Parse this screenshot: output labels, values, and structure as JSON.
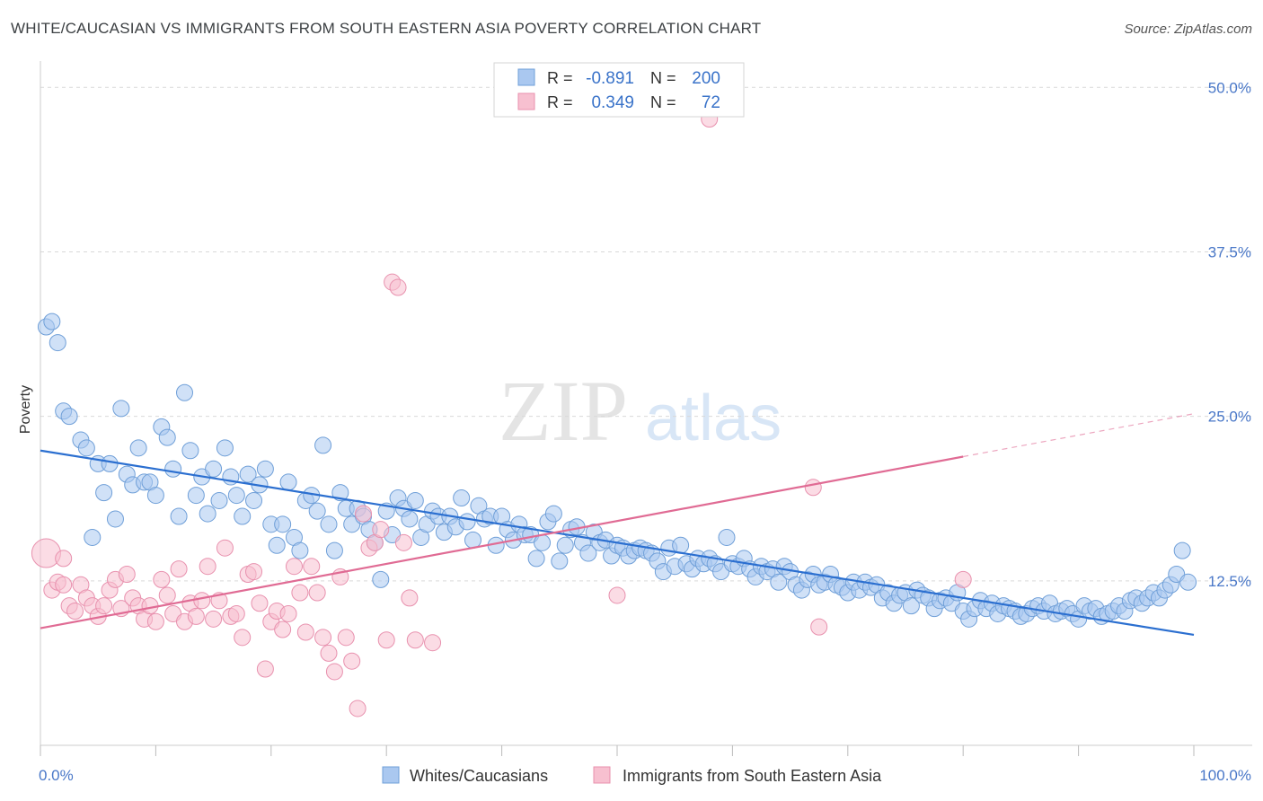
{
  "title": "WHITE/CAUCASIAN VS IMMIGRANTS FROM SOUTH EASTERN ASIA POVERTY CORRELATION CHART",
  "source": "Source: ZipAtlas.com",
  "watermark": {
    "zip": "ZIP",
    "atlas": "atlas"
  },
  "colors": {
    "blue_fill": "#aac8f0",
    "blue_stroke": "#6f9fd8",
    "blue_line": "#2b6fd0",
    "pink_fill": "#f7c0d0",
    "pink_stroke": "#e891ae",
    "pink_line": "#e06b94",
    "axis_text": "#4a78c8",
    "grid": "#d9d9d9"
  },
  "legend": {
    "rows": [
      {
        "r_label": "R =",
        "r_value": "-0.891",
        "n_label": "N =",
        "n_value": "200"
      },
      {
        "r_label": "R =",
        "r_value": "0.349",
        "n_label": "N =",
        "n_value": "72"
      }
    ]
  },
  "bottom_legend": {
    "series1": "Whites/Caucasians",
    "series2": "Immigrants from South Eastern Asia"
  },
  "chart_data": {
    "type": "scatter",
    "xlabel": "",
    "ylabel": "Poverty",
    "xlim": [
      0,
      100
    ],
    "ylim": [
      0,
      52
    ],
    "x_tick_labels": [
      "0.0%",
      "100.0%"
    ],
    "y_ticks": [
      12.5,
      25.0,
      37.5,
      50.0
    ],
    "y_tick_labels": [
      "12.5%",
      "25.0%",
      "37.5%",
      "50.0%"
    ],
    "series": [
      {
        "name": "Whites/Caucasians",
        "r": -0.891,
        "n": 200,
        "trend": {
          "x0": 0,
          "y0": 22.4,
          "x1": 100,
          "y1": 8.4,
          "solid_to": 100
        },
        "points": [
          [
            0.5,
            31.8
          ],
          [
            1,
            32.2
          ],
          [
            1.5,
            30.6
          ],
          [
            2,
            25.4
          ],
          [
            2.5,
            25
          ],
          [
            3.5,
            23.2
          ],
          [
            4,
            22.6
          ],
          [
            5,
            21.4
          ],
          [
            5.5,
            19.2
          ],
          [
            6,
            21.4
          ],
          [
            6.5,
            17.2
          ],
          [
            4.5,
            15.8
          ],
          [
            7,
            25.6
          ],
          [
            7.5,
            20.6
          ],
          [
            8,
            19.8
          ],
          [
            8.5,
            22.6
          ],
          [
            9,
            20
          ],
          [
            9.5,
            20
          ],
          [
            10,
            19
          ],
          [
            10.5,
            24.2
          ],
          [
            11,
            23.4
          ],
          [
            11.5,
            21
          ],
          [
            12,
            17.4
          ],
          [
            12.5,
            26.8
          ],
          [
            13,
            22.4
          ],
          [
            13.5,
            19
          ],
          [
            14,
            20.4
          ],
          [
            14.5,
            17.6
          ],
          [
            15,
            21
          ],
          [
            15.5,
            18.6
          ],
          [
            16,
            22.6
          ],
          [
            16.5,
            20.4
          ],
          [
            17,
            19
          ],
          [
            17.5,
            17.4
          ],
          [
            18,
            20.6
          ],
          [
            18.5,
            18.6
          ],
          [
            19,
            19.8
          ],
          [
            19.5,
            21
          ],
          [
            20,
            16.8
          ],
          [
            20.5,
            15.2
          ],
          [
            21,
            16.8
          ],
          [
            21.5,
            20
          ],
          [
            22,
            15.8
          ],
          [
            22.5,
            14.8
          ],
          [
            23,
            18.6
          ],
          [
            23.5,
            19
          ],
          [
            24,
            17.8
          ],
          [
            24.5,
            22.8
          ],
          [
            25,
            16.8
          ],
          [
            25.5,
            14.8
          ],
          [
            26,
            19.2
          ],
          [
            26.5,
            18
          ],
          [
            27,
            16.8
          ],
          [
            27.5,
            18
          ],
          [
            28,
            17.4
          ],
          [
            28.5,
            16.4
          ],
          [
            29,
            15.4
          ],
          [
            29.5,
            12.6
          ],
          [
            30,
            17.8
          ],
          [
            30.5,
            16
          ],
          [
            31,
            18.8
          ],
          [
            31.5,
            18
          ],
          [
            32,
            17.2
          ],
          [
            32.5,
            18.6
          ],
          [
            33,
            15.8
          ],
          [
            33.5,
            16.8
          ],
          [
            34,
            17.8
          ],
          [
            34.5,
            17.4
          ],
          [
            35,
            16.2
          ],
          [
            35.5,
            17.4
          ],
          [
            36,
            16.6
          ],
          [
            36.5,
            18.8
          ],
          [
            37,
            17
          ],
          [
            37.5,
            15.6
          ],
          [
            38,
            18.2
          ],
          [
            38.5,
            17.2
          ],
          [
            39,
            17.4
          ],
          [
            39.5,
            15.2
          ],
          [
            40,
            17.4
          ],
          [
            40.5,
            16.4
          ],
          [
            41,
            15.6
          ],
          [
            41.5,
            16.8
          ],
          [
            42,
            16
          ],
          [
            42.5,
            16
          ],
          [
            43,
            14.2
          ],
          [
            43.5,
            15.4
          ],
          [
            44,
            17
          ],
          [
            44.5,
            17.6
          ],
          [
            45,
            14
          ],
          [
            45.5,
            15.2
          ],
          [
            46,
            16.4
          ],
          [
            46.5,
            16.6
          ],
          [
            47,
            15.4
          ],
          [
            47.5,
            14.6
          ],
          [
            48,
            16.2
          ],
          [
            48.5,
            15.4
          ],
          [
            49,
            15.6
          ],
          [
            49.5,
            14.4
          ],
          [
            50,
            15.2
          ],
          [
            50.5,
            15
          ],
          [
            51,
            14.4
          ],
          [
            51.5,
            14.8
          ],
          [
            52,
            15
          ],
          [
            52.5,
            14.8
          ],
          [
            53,
            14.6
          ],
          [
            53.5,
            14
          ],
          [
            54,
            13.2
          ],
          [
            54.5,
            15
          ],
          [
            55,
            13.6
          ],
          [
            55.5,
            15.2
          ],
          [
            56,
            13.8
          ],
          [
            56.5,
            13.4
          ],
          [
            57,
            14.2
          ],
          [
            57.5,
            13.8
          ],
          [
            58,
            14.2
          ],
          [
            58.5,
            13.8
          ],
          [
            59,
            13.2
          ],
          [
            59.5,
            15.8
          ],
          [
            60,
            13.8
          ],
          [
            60.5,
            13.6
          ],
          [
            61,
            14.2
          ],
          [
            61.5,
            13.4
          ],
          [
            62,
            12.8
          ],
          [
            62.5,
            13.6
          ],
          [
            63,
            13.2
          ],
          [
            63.5,
            13.4
          ],
          [
            64,
            12.4
          ],
          [
            64.5,
            13.6
          ],
          [
            65,
            13.2
          ],
          [
            65.5,
            12.2
          ],
          [
            66,
            11.8
          ],
          [
            66.5,
            12.6
          ],
          [
            67,
            13
          ],
          [
            67.5,
            12.2
          ],
          [
            68,
            12.4
          ],
          [
            68.5,
            13
          ],
          [
            69,
            12.2
          ],
          [
            69.5,
            12
          ],
          [
            70,
            11.6
          ],
          [
            70.5,
            12.4
          ],
          [
            71,
            11.8
          ],
          [
            71.5,
            12.4
          ],
          [
            72,
            12
          ],
          [
            72.5,
            12.2
          ],
          [
            73,
            11.2
          ],
          [
            73.5,
            11.6
          ],
          [
            74,
            10.8
          ],
          [
            74.5,
            11.4
          ],
          [
            75,
            11.6
          ],
          [
            75.5,
            10.6
          ],
          [
            76,
            11.8
          ],
          [
            76.5,
            11.4
          ],
          [
            77,
            11.2
          ],
          [
            77.5,
            10.4
          ],
          [
            78,
            11
          ],
          [
            78.5,
            11.2
          ],
          [
            79,
            10.8
          ],
          [
            79.5,
            11.6
          ],
          [
            80,
            10.2
          ],
          [
            80.5,
            9.6
          ],
          [
            81,
            10.4
          ],
          [
            81.5,
            11
          ],
          [
            82,
            10.4
          ],
          [
            82.5,
            10.8
          ],
          [
            83,
            10
          ],
          [
            83.5,
            10.6
          ],
          [
            84,
            10.4
          ],
          [
            84.5,
            10.2
          ],
          [
            85,
            9.8
          ],
          [
            85.5,
            10
          ],
          [
            86,
            10.4
          ],
          [
            86.5,
            10.6
          ],
          [
            87,
            10.2
          ],
          [
            87.5,
            10.8
          ],
          [
            88,
            10
          ],
          [
            88.5,
            10.2
          ],
          [
            89,
            10.4
          ],
          [
            89.5,
            10
          ],
          [
            90,
            9.6
          ],
          [
            90.5,
            10.6
          ],
          [
            91,
            10.2
          ],
          [
            91.5,
            10.4
          ],
          [
            92,
            9.8
          ],
          [
            92.5,
            10
          ],
          [
            93,
            10.2
          ],
          [
            93.5,
            10.6
          ],
          [
            94,
            10.2
          ],
          [
            94.5,
            11
          ],
          [
            95,
            11.2
          ],
          [
            95.5,
            10.8
          ],
          [
            96,
            11.2
          ],
          [
            96.5,
            11.6
          ],
          [
            97,
            11.2
          ],
          [
            97.5,
            11.8
          ],
          [
            98,
            12.2
          ],
          [
            98.5,
            13
          ],
          [
            99,
            14.8
          ],
          [
            99.5,
            12.4
          ]
        ]
      },
      {
        "name": "Immigrants from South Eastern Asia",
        "r": 0.349,
        "n": 72,
        "trend": {
          "x0": 0,
          "y0": 8.9,
          "x1": 100,
          "y1": 25.2,
          "solid_to": 80
        },
        "points": [
          [
            0.5,
            14.6
          ],
          [
            1,
            11.8
          ],
          [
            1.5,
            12.4
          ],
          [
            2,
            12.2
          ],
          [
            2.5,
            10.6
          ],
          [
            3,
            10.2
          ],
          [
            3.5,
            12.2
          ],
          [
            4,
            11.2
          ],
          [
            4.5,
            10.6
          ],
          [
            5,
            9.8
          ],
          [
            5.5,
            10.6
          ],
          [
            6,
            11.8
          ],
          [
            6.5,
            12.6
          ],
          [
            7,
            10.4
          ],
          [
            7.5,
            13
          ],
          [
            8,
            11.2
          ],
          [
            8.5,
            10.6
          ],
          [
            9,
            9.6
          ],
          [
            9.5,
            10.6
          ],
          [
            10,
            9.4
          ],
          [
            10.5,
            12.6
          ],
          [
            11,
            11.4
          ],
          [
            11.5,
            10
          ],
          [
            12,
            13.4
          ],
          [
            12.5,
            9.4
          ],
          [
            13,
            10.8
          ],
          [
            13.5,
            9.8
          ],
          [
            14,
            11
          ],
          [
            14.5,
            13.6
          ],
          [
            15,
            9.6
          ],
          [
            15.5,
            11
          ],
          [
            16,
            15
          ],
          [
            16.5,
            9.8
          ],
          [
            17,
            10
          ],
          [
            17.5,
            8.2
          ],
          [
            18,
            13
          ],
          [
            18.5,
            13.2
          ],
          [
            19,
            10.8
          ],
          [
            19.5,
            5.8
          ],
          [
            20,
            9.4
          ],
          [
            20.5,
            10.2
          ],
          [
            21,
            8.8
          ],
          [
            21.5,
            10
          ],
          [
            22,
            13.6
          ],
          [
            22.5,
            11.6
          ],
          [
            23,
            8.6
          ],
          [
            23.5,
            13.6
          ],
          [
            24,
            11.6
          ],
          [
            24.5,
            8.2
          ],
          [
            25,
            7
          ],
          [
            25.5,
            5.6
          ],
          [
            26,
            12.8
          ],
          [
            26.5,
            8.2
          ],
          [
            27,
            6.4
          ],
          [
            27.5,
            2.8
          ],
          [
            28,
            17.6
          ],
          [
            28.5,
            15
          ],
          [
            29,
            15.4
          ],
          [
            29.5,
            16.4
          ],
          [
            30,
            8
          ],
          [
            30.5,
            35.2
          ],
          [
            31,
            34.8
          ],
          [
            31.5,
            15.4
          ],
          [
            32,
            11.2
          ],
          [
            32.5,
            8
          ],
          [
            34,
            7.8
          ],
          [
            50,
            11.4
          ],
          [
            67,
            19.6
          ],
          [
            67.5,
            9
          ],
          [
            80,
            12.6
          ],
          [
            58,
            47.6
          ],
          [
            2,
            14.2
          ]
        ]
      }
    ]
  }
}
